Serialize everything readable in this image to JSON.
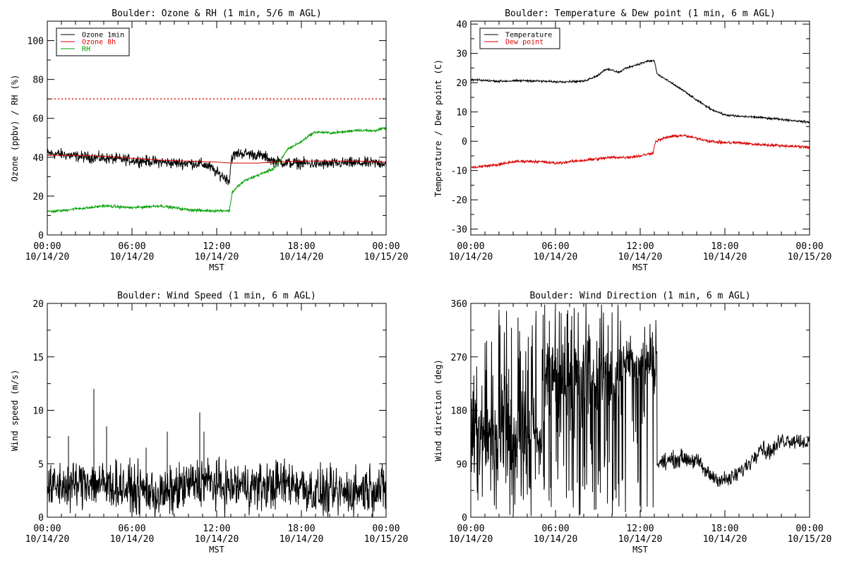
{
  "colors": {
    "black": "#000000",
    "red": "#dd0000",
    "green": "#00a000",
    "background": "#ffffff"
  },
  "chart_data": [
    {
      "id": "ozone",
      "type": "line",
      "title": "Boulder: Ozone & RH (1 min, 5/6 m AGL)",
      "xlabel": "MST",
      "ylabel": "Ozone (ppbv) / RH (%)",
      "xlim": [
        0,
        24
      ],
      "ylim": [
        0,
        110
      ],
      "yticks": [
        0,
        20,
        40,
        60,
        80,
        100
      ],
      "xtick_labels": [
        [
          "00:00",
          "10/14/20"
        ],
        [
          "06:00",
          "10/14/20"
        ],
        [
          "12:00",
          "10/14/20"
        ],
        [
          "18:00",
          "10/14/20"
        ],
        [
          "00:00",
          "10/15/20"
        ]
      ],
      "legend": {
        "placement": "top-left",
        "entries": [
          {
            "name": "Ozone 1min",
            "color": "#000000"
          },
          {
            "name": "Ozone 8h",
            "color": "#dd0000"
          },
          {
            "name": "RH",
            "color": "#00a000"
          }
        ]
      },
      "reference_line": {
        "y": 70,
        "color": "#dd0000",
        "style": "dotted"
      },
      "series": [
        {
          "name": "Ozone 1min",
          "color": "#000000",
          "noise": 2.0,
          "points": [
            [
              0,
              42
            ],
            [
              1,
              41.5
            ],
            [
              2,
              40.5
            ],
            [
              3,
              40
            ],
            [
              4,
              39.5
            ],
            [
              5,
              39
            ],
            [
              6,
              38.5
            ],
            [
              7,
              38
            ],
            [
              8,
              37.5
            ],
            [
              9,
              37
            ],
            [
              10,
              37
            ],
            [
              11,
              36.5
            ],
            [
              11.5,
              35
            ],
            [
              12,
              32
            ],
            [
              12.5,
              30
            ],
            [
              12.9,
              28
            ],
            [
              13.05,
              40
            ],
            [
              13.5,
              42
            ],
            [
              14,
              42
            ],
            [
              15,
              41
            ],
            [
              15.5,
              40
            ],
            [
              16,
              38
            ],
            [
              17,
              37
            ],
            [
              18,
              37
            ],
            [
              19,
              36.5
            ],
            [
              20,
              36.5
            ],
            [
              21,
              37
            ],
            [
              22,
              37
            ],
            [
              23,
              37
            ],
            [
              24,
              37
            ]
          ]
        },
        {
          "name": "Ozone 8h",
          "color": "#dd0000",
          "noise": 0,
          "points": [
            [
              0,
              41
            ],
            [
              2,
              41
            ],
            [
              4,
              40.5
            ],
            [
              6,
              39.5
            ],
            [
              8,
              38.5
            ],
            [
              10,
              38
            ],
            [
              12,
              37.5
            ],
            [
              13,
              37
            ],
            [
              14,
              37
            ],
            [
              15,
              37
            ],
            [
              16,
              37.5
            ],
            [
              18,
              38
            ],
            [
              20,
              38
            ],
            [
              22,
              38
            ],
            [
              24,
              37.5
            ]
          ]
        },
        {
          "name": "RH",
          "color": "#00a000",
          "noise": 0.5,
          "points": [
            [
              0,
              12
            ],
            [
              1,
              12.5
            ],
            [
              2,
              13.5
            ],
            [
              3,
              14
            ],
            [
              4,
              15
            ],
            [
              5,
              14.5
            ],
            [
              6,
              14
            ],
            [
              7,
              14.5
            ],
            [
              8,
              15
            ],
            [
              9,
              14
            ],
            [
              10,
              13
            ],
            [
              11,
              12.5
            ],
            [
              12,
              12.5
            ],
            [
              12.9,
              12.5
            ],
            [
              13.1,
              22
            ],
            [
              13.5,
              25
            ],
            [
              14,
              28
            ],
            [
              15,
              31
            ],
            [
              16,
              34
            ],
            [
              16.5,
              38
            ],
            [
              17,
              44
            ],
            [
              18,
              48
            ],
            [
              18.5,
              51
            ],
            [
              19,
              53
            ],
            [
              20,
              52.5
            ],
            [
              21,
              53
            ],
            [
              22,
              54
            ],
            [
              23,
              53.5
            ],
            [
              24,
              55
            ]
          ]
        }
      ]
    },
    {
      "id": "temp",
      "type": "line",
      "title": "Boulder: Temperature & Dew point (1 min, 6 m AGL)",
      "xlabel": "MST",
      "ylabel": "Temperature / Dew point (C)",
      "xlim": [
        0,
        24
      ],
      "ylim": [
        -32,
        41
      ],
      "yticks": [
        -30,
        -20,
        -10,
        0,
        10,
        20,
        30,
        40
      ],
      "xtick_labels": [
        [
          "00:00",
          "10/14/20"
        ],
        [
          "06:00",
          "10/14/20"
        ],
        [
          "12:00",
          "10/14/20"
        ],
        [
          "18:00",
          "10/14/20"
        ],
        [
          "00:00",
          "10/15/20"
        ]
      ],
      "legend": {
        "placement": "top-left",
        "entries": [
          {
            "name": "Temperature",
            "color": "#000000"
          },
          {
            "name": "Dew point",
            "color": "#dd0000"
          }
        ]
      },
      "series": [
        {
          "name": "Temperature",
          "color": "#000000",
          "noise": 0.25,
          "points": [
            [
              0,
              21
            ],
            [
              2,
              20.5
            ],
            [
              4,
              20.7
            ],
            [
              6,
              20.3
            ],
            [
              8,
              20.5
            ],
            [
              9,
              22.5
            ],
            [
              9.5,
              24.5
            ],
            [
              10,
              24.3
            ],
            [
              10.5,
              23.5
            ],
            [
              11,
              25
            ],
            [
              12,
              26.5
            ],
            [
              12.5,
              27.3
            ],
            [
              13,
              27.5
            ],
            [
              13.2,
              23
            ],
            [
              14,
              20.5
            ],
            [
              15,
              17.5
            ],
            [
              16,
              14
            ],
            [
              17,
              11
            ],
            [
              18,
              9
            ],
            [
              19,
              8.5
            ],
            [
              20,
              8.3
            ],
            [
              22,
              7.5
            ],
            [
              24,
              6.5
            ]
          ]
        },
        {
          "name": "Dew point",
          "color": "#dd0000",
          "noise": 0.35,
          "points": [
            [
              0,
              -9
            ],
            [
              2,
              -8
            ],
            [
              3,
              -7
            ],
            [
              4,
              -6.8
            ],
            [
              5,
              -7
            ],
            [
              6,
              -7.5
            ],
            [
              7,
              -7
            ],
            [
              8,
              -6.5
            ],
            [
              9,
              -6
            ],
            [
              10,
              -5.5
            ],
            [
              11,
              -5.5
            ],
            [
              12,
              -5
            ],
            [
              12.9,
              -4
            ],
            [
              13.1,
              0
            ],
            [
              14,
              1.5
            ],
            [
              15,
              2
            ],
            [
              16,
              1
            ],
            [
              17,
              0
            ],
            [
              18,
              -0.5
            ],
            [
              19,
              -0.5
            ],
            [
              20,
              -1
            ],
            [
              22,
              -1.5
            ],
            [
              24,
              -2
            ]
          ]
        }
      ]
    },
    {
      "id": "wspd",
      "type": "line",
      "title": "Boulder: Wind Speed (1 min, 6 m AGL)",
      "xlabel": "MST",
      "ylabel": "Wind speed (m/s)",
      "xlim": [
        0,
        24
      ],
      "ylim": [
        0,
        20
      ],
      "yticks": [
        0,
        5,
        10,
        15,
        20
      ],
      "xtick_labels": [
        [
          "00:00",
          "10/14/20"
        ],
        [
          "06:00",
          "10/14/20"
        ],
        [
          "12:00",
          "10/14/20"
        ],
        [
          "18:00",
          "10/14/20"
        ],
        [
          "00:00",
          "10/15/20"
        ]
      ],
      "series": [
        {
          "name": "",
          "color": "#000000",
          "noise": 1.6,
          "clamp": [
            0,
            20
          ],
          "spikes": [
            [
              3.3,
              12
            ],
            [
              10.8,
              9.8
            ],
            [
              4.2,
              8.5
            ],
            [
              8.5,
              8
            ],
            [
              11.1,
              8
            ],
            [
              1.5,
              7.6
            ],
            [
              7,
              6.5
            ]
          ],
          "points": [
            [
              0,
              2.5
            ],
            [
              1,
              3
            ],
            [
              2,
              3
            ],
            [
              3,
              3.5
            ],
            [
              4,
              3
            ],
            [
              5,
              3
            ],
            [
              6,
              2.5
            ],
            [
              7,
              2.5
            ],
            [
              8,
              2
            ],
            [
              9,
              2.5
            ],
            [
              10,
              3
            ],
            [
              11,
              3.5
            ],
            [
              12,
              3
            ],
            [
              13,
              2.8
            ],
            [
              14,
              3
            ],
            [
              15,
              2.8
            ],
            [
              16,
              3
            ],
            [
              17,
              3.2
            ],
            [
              18,
              3
            ],
            [
              19,
              2.3
            ],
            [
              20,
              2.2
            ],
            [
              21,
              2.3
            ],
            [
              22,
              2.5
            ],
            [
              23,
              2.8
            ],
            [
              24,
              2.5
            ]
          ]
        }
      ]
    },
    {
      "id": "wdir",
      "type": "line",
      "title": "Boulder: Wind Direction (1 min, 6 m AGL)",
      "xlabel": "MST",
      "ylabel": "Wind direction (deg)",
      "xlim": [
        0,
        24
      ],
      "ylim": [
        0,
        360
      ],
      "yticks": [
        0,
        90,
        180,
        270,
        360
      ],
      "xtick_labels": [
        [
          "00:00",
          "10/14/20"
        ],
        [
          "06:00",
          "10/14/20"
        ],
        [
          "12:00",
          "10/14/20"
        ],
        [
          "18:00",
          "10/14/20"
        ],
        [
          "00:00",
          "10/15/20"
        ]
      ],
      "series": [
        {
          "name": "",
          "color": "#000000",
          "clamp": [
            0,
            360
          ],
          "segments": [
            {
              "from": 0,
              "to": 13.2,
              "mode": "chaotic"
            },
            {
              "from": 13.2,
              "to": 24,
              "mode": "smooth",
              "noise": 10,
              "points": [
                [
                  13.2,
                  90
                ],
                [
                  14,
                  95
                ],
                [
                  15,
                  100
                ],
                [
                  16,
                  95
                ],
                [
                  16.5,
                  80
                ],
                [
                  17,
                  70
                ],
                [
                  17.5,
                  65
                ],
                [
                  18,
                  62
                ],
                [
                  18.5,
                  65
                ],
                [
                  19,
                  75
                ],
                [
                  19.5,
                  85
                ],
                [
                  20,
                  100
                ],
                [
                  20.5,
                  120
                ],
                [
                  21,
                  110
                ],
                [
                  21.5,
                  115
                ],
                [
                  22,
                  130
                ],
                [
                  23,
                  130
                ],
                [
                  24,
                  125
                ]
              ]
            }
          ]
        }
      ]
    }
  ]
}
